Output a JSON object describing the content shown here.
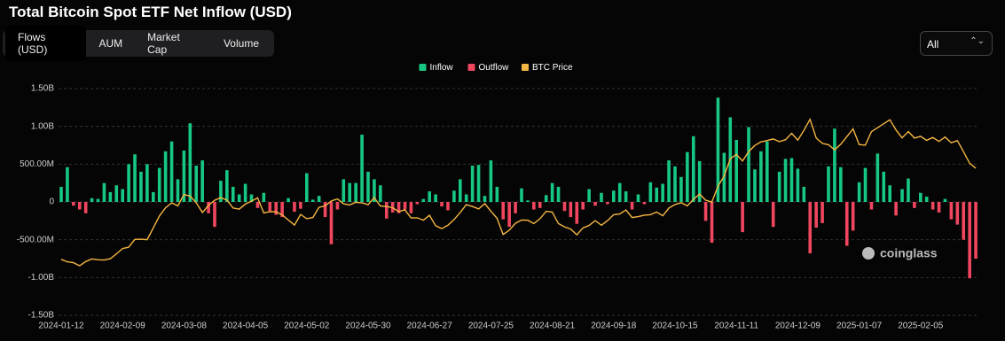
{
  "chart_data": {
    "type": "bar-line",
    "title": "Total Bitcoin Spot ETF Net Inflow (USD)",
    "categories": [
      "2024-01-12",
      null,
      null,
      null,
      null,
      null,
      null,
      null,
      null,
      null,
      "2024-02-09",
      null,
      null,
      null,
      null,
      null,
      null,
      null,
      null,
      null,
      "2024-03-08",
      null,
      null,
      null,
      null,
      null,
      null,
      null,
      null,
      null,
      "2024-04-05",
      null,
      null,
      null,
      null,
      null,
      null,
      null,
      null,
      null,
      "2024-05-02",
      null,
      null,
      null,
      null,
      null,
      null,
      null,
      null,
      null,
      "2024-05-30",
      null,
      null,
      null,
      null,
      null,
      null,
      null,
      null,
      null,
      "2024-06-27",
      null,
      null,
      null,
      null,
      null,
      null,
      null,
      null,
      null,
      "2024-07-25",
      null,
      null,
      null,
      null,
      null,
      null,
      null,
      null,
      null,
      "2024-08-21",
      null,
      null,
      null,
      null,
      null,
      null,
      null,
      null,
      null,
      "2024-09-18",
      null,
      null,
      null,
      null,
      null,
      null,
      null,
      null,
      null,
      "2024-10-15",
      null,
      null,
      null,
      null,
      null,
      null,
      null,
      null,
      null,
      "2024-11-11",
      null,
      null,
      null,
      null,
      null,
      null,
      null,
      null,
      null,
      "2024-12-09",
      null,
      null,
      null,
      null,
      null,
      null,
      null,
      null,
      null,
      "2025-01-07",
      null,
      null,
      null,
      null,
      null,
      null,
      null,
      null,
      null,
      "2025-02-05",
      null,
      null,
      null,
      null,
      null,
      null,
      null,
      null,
      null
    ],
    "series": [
      {
        "name": "Inflow",
        "color": "#17c784",
        "values": [
          200000000.0,
          460000000.0,
          null,
          null,
          null,
          50000000.0,
          40000000.0,
          250000000.0,
          130000000.0,
          220000000.0,
          170000000.0,
          500000000.0,
          630000000.0,
          400000000.0,
          500000000.0,
          130000000.0,
          450000000.0,
          670000000.0,
          800000000.0,
          300000000.0,
          680000000.0,
          1040000000.0,
          480000000.0,
          550000000.0,
          null,
          null,
          280000000.0,
          420000000.0,
          200000000.0,
          100000000.0,
          240000000.0,
          100000000.0,
          null,
          120000000.0,
          null,
          null,
          null,
          50000000.0,
          null,
          null,
          380000000.0,
          30000000.0,
          80000000.0,
          null,
          null,
          null,
          300000000.0,
          250000000.0,
          250000000.0,
          890000000.0,
          400000000.0,
          300000000.0,
          220000000.0,
          null,
          null,
          null,
          null,
          null,
          null,
          40000000.0,
          140000000.0,
          100000000.0,
          null,
          null,
          150000000.0,
          300000000.0,
          100000000.0,
          480000000.0,
          490000000.0,
          80000000.0,
          550000000.0,
          200000000.0,
          null,
          null,
          null,
          180000000.0,
          20000000.0,
          null,
          null,
          90000000.0,
          250000000.0,
          200000000.0,
          null,
          null,
          null,
          null,
          170000000.0,
          null,
          120000000.0,
          null,
          150000000.0,
          250000000.0,
          140000000.0,
          null,
          100000000.0,
          null,
          260000000.0,
          190000000.0,
          240000000.0,
          550000000.0,
          470000000.0,
          330000000.0,
          660000000.0,
          870000000.0,
          540000000.0,
          null,
          null,
          1380000000.0,
          650000000.0,
          1120000000.0,
          820000000.0,
          null,
          990000000.0,
          430000000.0,
          670000000.0,
          800000000.0,
          null,
          400000000.0,
          570000000.0,
          580000000.0,
          440000000.0,
          200000000.0,
          null,
          null,
          null,
          470000000.0,
          970000000.0,
          460000000.0,
          null,
          null,
          260000000.0,
          450000000.0,
          null,
          640000000.0,
          400000000.0,
          220000000.0,
          null,
          170000000.0,
          310000000.0,
          null,
          120000000.0,
          70000000.0,
          null,
          null,
          40000000.0,
          null,
          null,
          null,
          null,
          null
        ]
      },
      {
        "name": "Outflow",
        "color": "#f0465f",
        "values": [
          null,
          null,
          -50000000.0,
          -100000000.0,
          -150000000.0,
          null,
          null,
          null,
          null,
          null,
          null,
          null,
          null,
          null,
          null,
          null,
          null,
          null,
          null,
          null,
          null,
          null,
          null,
          null,
          -150000000.0,
          -330000000.0,
          null,
          null,
          null,
          null,
          null,
          null,
          -80000000.0,
          null,
          -120000000.0,
          -170000000.0,
          -200000000.0,
          null,
          -130000000.0,
          -90000000.0,
          null,
          null,
          null,
          -200000000.0,
          -560000000.0,
          -100000000.0,
          null,
          null,
          null,
          null,
          null,
          null,
          null,
          -220000000.0,
          -140000000.0,
          -150000000.0,
          -100000000.0,
          -150000000.0,
          -30000000.0,
          null,
          null,
          null,
          -60000000.0,
          -110000000.0,
          null,
          null,
          null,
          null,
          null,
          null,
          null,
          null,
          -230000000.0,
          -330000000.0,
          -150000000.0,
          null,
          null,
          -100000000.0,
          -80000000.0,
          null,
          null,
          null,
          -120000000.0,
          -200000000.0,
          -290000000.0,
          -100000000.0,
          null,
          -50000000.0,
          null,
          -30000000.0,
          null,
          null,
          null,
          -100000000.0,
          null,
          -30000000.0,
          null,
          null,
          null,
          null,
          null,
          null,
          null,
          null,
          null,
          -250000000.0,
          -540000000.0,
          null,
          null,
          null,
          null,
          -400000000.0,
          null,
          null,
          null,
          null,
          -330000000.0,
          null,
          null,
          null,
          null,
          null,
          -680000000.0,
          -340000000.0,
          -280000000.0,
          null,
          null,
          null,
          -580000000.0,
          -380000000.0,
          null,
          null,
          -100000000.0,
          null,
          null,
          null,
          -180000000.0,
          null,
          null,
          -80000000.0,
          null,
          null,
          -100000000.0,
          -140000000.0,
          null,
          -230000000.0,
          -300000000.0,
          -500000000.0,
          -1010000000.0,
          -750000000.0
        ]
      },
      {
        "name": "BTC Price",
        "color": "#f5b642",
        "axis": "y2",
        "values": [
          42800,
          41700,
          41300,
          39900,
          41800,
          43000,
          42600,
          42500,
          43100,
          45300,
          47700,
          48300,
          51800,
          51900,
          51700,
          57000,
          62400,
          66100,
          68300,
          67000,
          72100,
          71400,
          68400,
          64000,
          67200,
          69500,
          70700,
          69600,
          66000,
          65500,
          67800,
          69100,
          70600,
          63800,
          64400,
          64300,
          62900,
          60600,
          58300,
          63100,
          61200,
          61700,
          66300,
          67000,
          69200,
          70100,
          67900,
          67400,
          68600,
          68300,
          67500,
          70700,
          66900,
          66700,
          66100,
          64400,
          65200,
          61500,
          61600,
          60500,
          62700,
          58000,
          56700,
          58200,
          60800,
          64000,
          67500,
          66700,
          65600,
          68000,
          64600,
          61400,
          54000,
          56000,
          59100,
          60600,
          60500,
          59000,
          61200,
          64500,
          64200,
          59000,
          57500,
          56500,
          53900,
          57000,
          58100,
          60300,
          58200,
          60300,
          63000,
          63300,
          65100,
          61700,
          62100,
          62800,
          63000,
          64200,
          62500,
          66000,
          67600,
          68400,
          67000,
          69900,
          72300,
          69500,
          68700,
          75800,
          80500,
          88300,
          90200,
          87300,
          91500,
          94300,
          95900,
          96500,
          97200,
          96000,
          96900,
          99800,
          96700,
          101100,
          106100,
          97600,
          95200,
          94600,
          92300,
          94800,
          98300,
          101800,
          94700,
          94400,
          100500,
          102300,
          104100,
          105900,
          101300,
          97700,
          100600,
          97600,
          98400,
          96600,
          97900,
          96100,
          98100,
          95500,
          96500,
          91500,
          86200,
          84000
        ]
      }
    ],
    "ylim": [
      -1500000000.0,
      1500000000.0
    ],
    "yticks": [
      {
        "value": 1500000000.0,
        "label": "1.50B"
      },
      {
        "value": 1000000000.0,
        "label": "1.00B"
      },
      {
        "value": 500000000.0,
        "label": "500.00M"
      },
      0,
      {
        "value": -500000000.0,
        "label": "-500.00M"
      },
      {
        "value": -1000000000.0,
        "label": "-1.00B"
      },
      {
        "value": -1500000000.0,
        "label": "-1.50B"
      }
    ],
    "y2lim": [
      17500,
      120000
    ],
    "grid": true
  },
  "tabs": [
    "Flows (USD)",
    "AUM",
    "Market Cap",
    "Volume"
  ],
  "range_select": "All",
  "watermark": "coinglass"
}
